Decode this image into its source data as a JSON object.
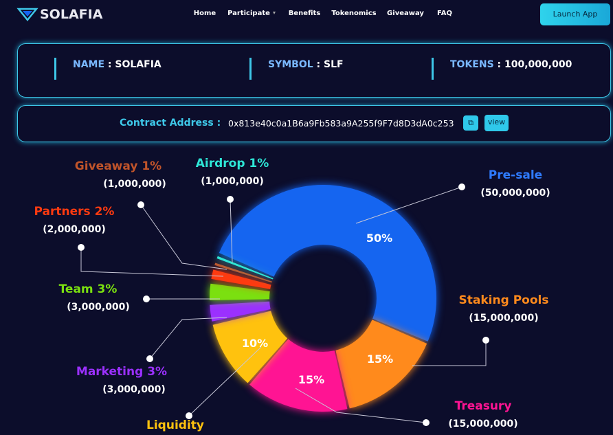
{
  "nav": {
    "brand": "SOLAFIA",
    "links": [
      "Home",
      "Participate",
      "Benefits",
      "Tokenomics",
      "Giveaway",
      "FAQ"
    ],
    "button": "Launch App"
  },
  "info": {
    "items": [
      {
        "label": "NAME",
        "value": ": SOLAFIA"
      },
      {
        "label": "SYMBOL",
        "value": ": SLF"
      },
      {
        "label": "TOKENS",
        "value": ": 100,000,000"
      }
    ]
  },
  "contract": {
    "label": "Contract Address :",
    "address": "0x813e40c0a1B6a9Fb583a9A255f9F7d8D3dA0c253",
    "view": "view"
  },
  "chart_data": {
    "type": "donut",
    "categories": [
      "Pre-sale",
      "Staking Pools",
      "Treasury",
      "Liquidity",
      "Marketing 3%",
      "Team 3%",
      "Partners 2%",
      "Giveaway 1%",
      "Airdrop 1%"
    ],
    "values": [
      50,
      15,
      15,
      10,
      3,
      3,
      2,
      1,
      1
    ],
    "value_labels": [
      "50%",
      "15%",
      "15%",
      "10%",
      null,
      null,
      null,
      null,
      null
    ],
    "amounts": [
      "(50,000,000)",
      "(15,000,000)",
      "(15,000,000)",
      null,
      "(3,000,000)",
      "(3,000,000)",
      "(2,000,000)",
      "(1,000,000)",
      "(1,000,000)"
    ],
    "colors": [
      "#1565f0",
      "#ff8a1c",
      "#ff1493",
      "#ffc20e",
      "#9b30ff",
      "#7be010",
      "#ff3a10",
      "#c0542a",
      "#2ee6d6"
    ]
  }
}
